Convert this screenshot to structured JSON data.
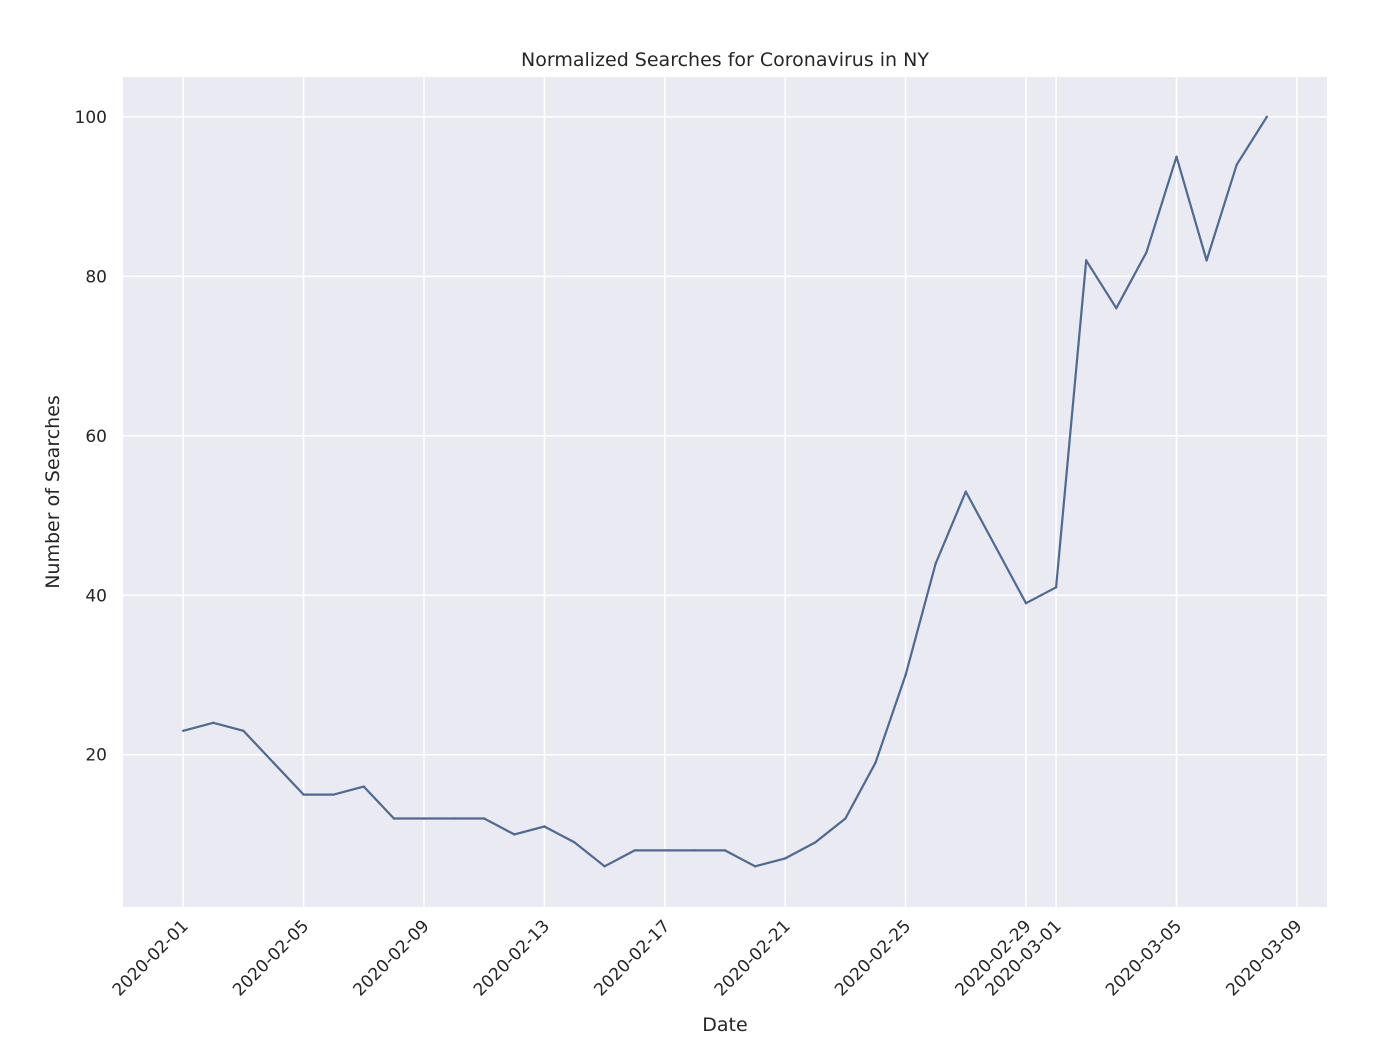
{
  "chart_data": {
    "type": "line",
    "title": "Normalized Searches for Coronavirus in NY",
    "xlabel": "Date",
    "ylabel": "Number of Searches",
    "x_ticks": [
      "2020-02-01",
      "2020-02-05",
      "2020-02-09",
      "2020-02-13",
      "2020-02-17",
      "2020-02-21",
      "2020-02-25",
      "2020-02-29",
      "2020-03-01",
      "2020-03-05",
      "2020-03-09"
    ],
    "y_ticks": [
      20,
      40,
      60,
      80,
      100
    ],
    "xlim": [
      "2020-01-30",
      "2020-03-10"
    ],
    "ylim": [
      0.9,
      105
    ],
    "grid": true,
    "colors": {
      "line": "#4c6a92",
      "background": "#eaeaf2",
      "grid": "#ffffff"
    },
    "series": [
      {
        "x": [
          "2020-02-01",
          "2020-02-02",
          "2020-02-03",
          "2020-02-04",
          "2020-02-05",
          "2020-02-06",
          "2020-02-07",
          "2020-02-08",
          "2020-02-09",
          "2020-02-10",
          "2020-02-11",
          "2020-02-12",
          "2020-02-13",
          "2020-02-14",
          "2020-02-15",
          "2020-02-16",
          "2020-02-17",
          "2020-02-18",
          "2020-02-19",
          "2020-02-20",
          "2020-02-21",
          "2020-02-22",
          "2020-02-23",
          "2020-02-24",
          "2020-02-25",
          "2020-02-26",
          "2020-02-27",
          "2020-02-28",
          "2020-02-29",
          "2020-03-01",
          "2020-03-02",
          "2020-03-03",
          "2020-03-04",
          "2020-03-05",
          "2020-03-06",
          "2020-03-07",
          "2020-03-08"
        ],
        "values": [
          23,
          24,
          23,
          19,
          15,
          15,
          16,
          12,
          12,
          12,
          12,
          10,
          11,
          9,
          6,
          8,
          8,
          8,
          8,
          6,
          7,
          9,
          12,
          19,
          30,
          44,
          53,
          46,
          39,
          41,
          82,
          76,
          83,
          95,
          82,
          94,
          100
        ]
      }
    ]
  }
}
